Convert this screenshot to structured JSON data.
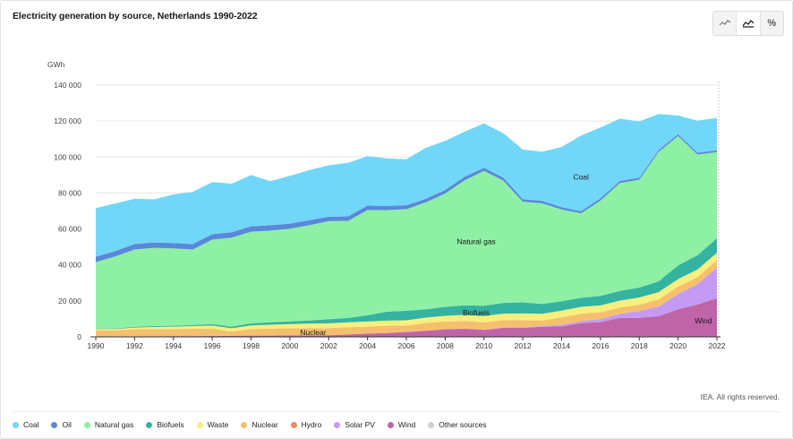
{
  "title": "Electricity generation by source, Netherlands 1990-2022",
  "credit": "IEA. All rights reserved.",
  "toggles": [
    {
      "name": "line-chart-icon",
      "active": false
    },
    {
      "name": "area-chart-icon",
      "active": true
    },
    {
      "name": "percent-icon",
      "label": "%",
      "active": false
    }
  ],
  "chart_data": {
    "type": "area",
    "stacked": true,
    "title": "Electricity generation by source, Netherlands 1990-2022",
    "ylabel": "GWh",
    "ylim": [
      0,
      140000
    ],
    "yticks": [
      {
        "value": 0,
        "label": "0"
      },
      {
        "value": 20000,
        "label": "20 000"
      },
      {
        "value": 40000,
        "label": "40 000"
      },
      {
        "value": 60000,
        "label": "60 000"
      },
      {
        "value": 80000,
        "label": "80 000"
      },
      {
        "value": 100000,
        "label": "100 000"
      },
      {
        "value": 120000,
        "label": "120 000"
      },
      {
        "value": 140000,
        "label": "140 000"
      }
    ],
    "xticks": [
      "1990",
      "1992",
      "1994",
      "1996",
      "1998",
      "2000",
      "2002",
      "2004",
      "2006",
      "2008",
      "2010",
      "2012",
      "2014",
      "2016",
      "2018",
      "2020",
      "2022"
    ],
    "grid": true,
    "legend_position": "bottom",
    "x": [
      1990,
      1991,
      1992,
      1993,
      1994,
      1995,
      1996,
      1997,
      1998,
      1999,
      2000,
      2001,
      2002,
      2003,
      2004,
      2005,
      2006,
      2007,
      2008,
      2009,
      2010,
      2011,
      2012,
      2013,
      2014,
      2015,
      2016,
      2017,
      2018,
      2019,
      2020,
      2021,
      2022
    ],
    "series": [
      {
        "name": "Wind",
        "color": "#c064a8",
        "values": [
          100,
          200,
          300,
          300,
          400,
          400,
          500,
          500,
          700,
          700,
          800,
          800,
          900,
          1300,
          1800,
          2100,
          2700,
          3400,
          4200,
          4500,
          3900,
          5000,
          5000,
          5600,
          5800,
          7600,
          8200,
          10600,
          10600,
          11500,
          15300,
          18000,
          21500
        ]
      },
      {
        "name": "Solar PV",
        "color": "#c49bf3",
        "values": [
          0,
          0,
          0,
          0,
          0,
          0,
          0,
          0,
          0,
          0,
          0,
          0,
          0,
          0,
          0,
          0,
          0,
          0,
          0,
          0,
          100,
          100,
          300,
          500,
          800,
          1100,
          1600,
          2200,
          3700,
          5300,
          8500,
          11300,
          17000
        ]
      },
      {
        "name": "Hydro",
        "color": "#f08a62",
        "values": [
          100,
          100,
          100,
          100,
          100,
          100,
          100,
          100,
          100,
          100,
          100,
          100,
          100,
          100,
          100,
          100,
          100,
          100,
          100,
          100,
          100,
          100,
          100,
          100,
          100,
          100,
          100,
          100,
          100,
          100,
          100,
          100,
          100
        ]
      },
      {
        "name": "Nuclear",
        "color": "#f5c06d",
        "values": [
          3500,
          3300,
          3800,
          3900,
          3900,
          4000,
          4000,
          2400,
          3600,
          3800,
          3900,
          4000,
          3900,
          4000,
          3800,
          4000,
          3500,
          4200,
          4200,
          4200,
          4000,
          4100,
          3900,
          2900,
          4100,
          4100,
          3800,
          3400,
          3500,
          3900,
          4100,
          3800,
          4000
        ]
      },
      {
        "name": "Waste",
        "color": "#f8ef7e",
        "values": [
          700,
          800,
          1000,
          1200,
          1300,
          1500,
          1700,
          1800,
          2000,
          2200,
          2300,
          2500,
          2600,
          2700,
          2800,
          2800,
          2900,
          3000,
          3200,
          3400,
          3500,
          3600,
          3700,
          3700,
          3800,
          3800,
          3800,
          3900,
          4000,
          4100,
          4100,
          4200,
          4200
        ]
      },
      {
        "name": "Biofuels",
        "color": "#34b3a0",
        "values": [
          200,
          300,
          400,
          500,
          500,
          600,
          800,
          900,
          1100,
          1300,
          1500,
          1700,
          2300,
          2400,
          3500,
          5000,
          5300,
          4600,
          5000,
          5400,
          5700,
          6000,
          6200,
          5500,
          5200,
          5000,
          5300,
          5400,
          5500,
          6000,
          7600,
          8000,
          8000
        ]
      },
      {
        "name": "Natural gas",
        "color": "#8ef0a4",
        "values": [
          37000,
          40000,
          43000,
          43500,
          43000,
          42000,
          47000,
          49500,
          51000,
          51000,
          51500,
          53000,
          54500,
          54000,
          58500,
          56500,
          56500,
          59500,
          63000,
          69500,
          75000,
          68000,
          56000,
          56000,
          51000,
          47000,
          53000,
          60000,
          60000,
          72000,
          72000,
          56000,
          48000
        ]
      },
      {
        "name": "Oil",
        "color": "#5a88d8",
        "values": [
          3000,
          3000,
          3000,
          3000,
          3000,
          3000,
          3000,
          3000,
          3000,
          3000,
          2900,
          2800,
          2500,
          2500,
          2500,
          2300,
          2200,
          2000,
          2000,
          2000,
          1800,
          1600,
          1400,
          1300,
          1300,
          1200,
          1200,
          1100,
          1100,
          1000,
          1000,
          1000,
          1000
        ]
      },
      {
        "name": "Coal",
        "color": "#72d6f9",
        "values": [
          27000,
          26500,
          25200,
          24000,
          27000,
          29000,
          29000,
          27000,
          28500,
          24500,
          26600,
          27800,
          28600,
          29800,
          27500,
          26400,
          25600,
          28300,
          27300,
          25000,
          24600,
          24700,
          27600,
          27400,
          33500,
          42000,
          39500,
          34600,
          31300,
          20000,
          10400,
          17800,
          18000
        ]
      },
      {
        "name": "Other sources",
        "color": "#cfcfcf",
        "values": [
          0,
          0,
          0,
          0,
          0,
          0,
          0,
          0,
          0,
          0,
          0,
          0,
          0,
          0,
          0,
          0,
          0,
          0,
          0,
          0,
          0,
          0,
          0,
          0,
          0,
          0,
          0,
          0,
          0,
          0,
          0,
          0,
          0
        ]
      }
    ],
    "legend_order": [
      "Coal",
      "Oil",
      "Natural gas",
      "Biofuels",
      "Waste",
      "Nuclear",
      "Hydro",
      "Solar PV",
      "Wind",
      "Other sources"
    ],
    "annotations": [
      {
        "text": "Coal",
        "x": 2015,
        "y": 89000
      },
      {
        "text": "Natural gas",
        "x": 2009.6,
        "y": 53000
      },
      {
        "text": "Biofuels",
        "x": 2009.6,
        "y": 13500
      },
      {
        "text": "Nuclear",
        "x": 2001.2,
        "y": 2400
      },
      {
        "text": "Wind",
        "x": 2021.3,
        "y": 9000
      }
    ]
  }
}
